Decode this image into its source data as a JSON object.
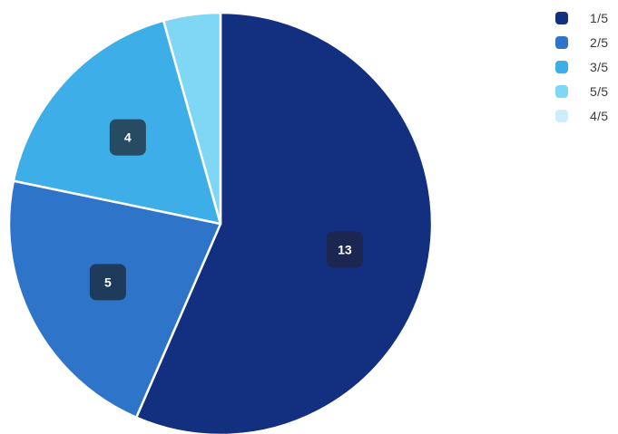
{
  "chart_data": {
    "type": "pie",
    "legend_position": "top-right",
    "slices": [
      {
        "name": "1/5",
        "value": 13,
        "color": "#132F80",
        "label": "13",
        "label_bg": "#1B2651"
      },
      {
        "name": "2/5",
        "value": 5,
        "color": "#2E74C9",
        "label": "5",
        "label_bg": "#1E3B5C"
      },
      {
        "name": "3/5",
        "value": 4,
        "color": "#3DAEE7",
        "label": "4",
        "label_bg": "#274B62"
      },
      {
        "name": "5/5",
        "value": 1,
        "color": "#7FD6F5",
        "label": "",
        "label_bg": ""
      },
      {
        "name": "4/5",
        "value": 0,
        "color": "#CDEFFB",
        "label": "",
        "label_bg": ""
      }
    ]
  }
}
